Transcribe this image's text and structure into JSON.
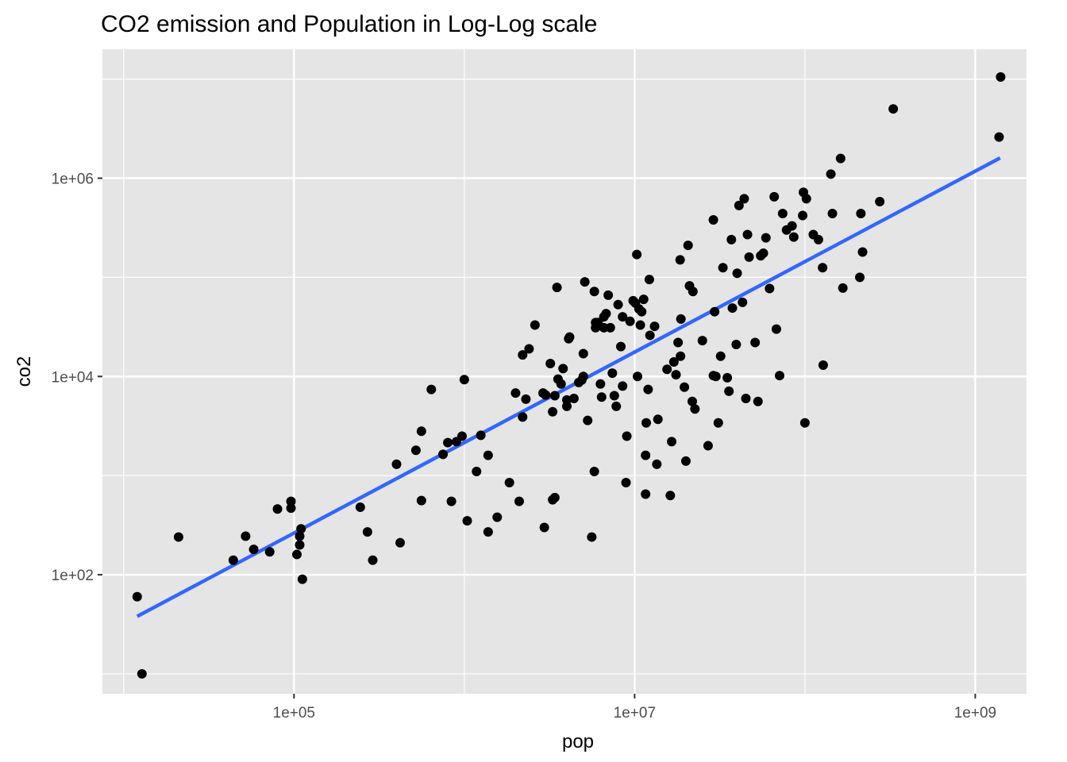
{
  "chart_data": {
    "type": "scatter",
    "title": "CO2 emission and Population in Log-Log scale",
    "xlabel": "pop",
    "ylabel": "co2",
    "x_scale": "log10",
    "y_scale": "log10",
    "xlim": [
      7500,
      2000000000
    ],
    "ylim": [
      6.3,
      20000000
    ],
    "x_ticks": [
      {
        "value": 100000,
        "label": "1e+05"
      },
      {
        "value": 10000000,
        "label": "1e+07"
      },
      {
        "value": 1000000000,
        "label": "1e+09"
      }
    ],
    "y_ticks": [
      {
        "value": 100,
        "label": "1e+02"
      },
      {
        "value": 10000,
        "label": "1e+04"
      },
      {
        "value": 1000000,
        "label": "1e+06"
      }
    ],
    "grid": true,
    "colors": {
      "panel": "#e5e5e5",
      "grid": "#ffffff",
      "points": "#000000",
      "trend": "#3366ff"
    },
    "trend_line": {
      "method": "lm",
      "x": [
        12000,
        1400000000
      ],
      "y": [
        38,
        1600000
      ]
    },
    "points": [
      [
        12000,
        60
      ],
      [
        12800,
        10
      ],
      [
        21000,
        240
      ],
      [
        44000,
        140
      ],
      [
        52000,
        245
      ],
      [
        58000,
        180
      ],
      [
        72000,
        170
      ],
      [
        80000,
        460
      ],
      [
        96000,
        550
      ],
      [
        96000,
        470
      ],
      [
        104000,
        160
      ],
      [
        108000,
        200
      ],
      [
        110000,
        290
      ],
      [
        108000,
        245
      ],
      [
        112000,
        90
      ],
      [
        245000,
        480
      ],
      [
        270000,
        270
      ],
      [
        290000,
        140
      ],
      [
        400000,
        1300
      ],
      [
        420000,
        210
      ],
      [
        520000,
        1800
      ],
      [
        560000,
        2800
      ],
      [
        560000,
        560
      ],
      [
        640000,
        7400
      ],
      [
        750000,
        1640
      ],
      [
        800000,
        2150
      ],
      [
        840000,
        550
      ],
      [
        900000,
        2200
      ],
      [
        970000,
        2500
      ],
      [
        1000000,
        9300
      ],
      [
        1040000,
        350
      ],
      [
        1180000,
        1100
      ],
      [
        1250000,
        2550
      ],
      [
        1380000,
        1600
      ],
      [
        1380000,
        270
      ],
      [
        1560000,
        380
      ],
      [
        1840000,
        850
      ],
      [
        2000000,
        6800
      ],
      [
        2100000,
        550
      ],
      [
        2200000,
        3900
      ],
      [
        2200000,
        16500
      ],
      [
        2300000,
        5900
      ],
      [
        2400000,
        19000
      ],
      [
        2600000,
        33000
      ],
      [
        2900000,
        6800
      ],
      [
        2950000,
        300
      ],
      [
        3000000,
        6500
      ],
      [
        3200000,
        13500
      ],
      [
        3300000,
        570
      ],
      [
        3300000,
        4400
      ],
      [
        3400000,
        600
      ],
      [
        3400000,
        6400
      ],
      [
        3550000,
        9400
      ],
      [
        3700000,
        8400
      ],
      [
        3500000,
        79000
      ],
      [
        4000000,
        5000
      ],
      [
        3800000,
        12000
      ],
      [
        4000000,
        5800
      ],
      [
        4100000,
        24000
      ],
      [
        4150000,
        25000
      ],
      [
        4400000,
        6000
      ],
      [
        4700000,
        8700
      ],
      [
        4900000,
        9200
      ],
      [
        5000000,
        17000
      ],
      [
        5000000,
        10000
      ],
      [
        5100000,
        90000
      ],
      [
        5300000,
        3600
      ],
      [
        5600000,
        240
      ],
      [
        5800000,
        1100
      ],
      [
        5800000,
        72000
      ],
      [
        5900000,
        35000
      ],
      [
        5900000,
        31000
      ],
      [
        6100000,
        35000
      ],
      [
        6300000,
        8400
      ],
      [
        6400000,
        6200
      ],
      [
        6600000,
        31000
      ],
      [
        6600000,
        40000
      ],
      [
        6800000,
        43000
      ],
      [
        7000000,
        66000
      ],
      [
        7200000,
        31000
      ],
      [
        7400000,
        10800
      ],
      [
        7600000,
        6400
      ],
      [
        7800000,
        5000
      ],
      [
        8000000,
        53000
      ],
      [
        8300000,
        20000
      ],
      [
        8500000,
        40000
      ],
      [
        8500000,
        8000
      ],
      [
        8900000,
        850
      ],
      [
        9000000,
        2500
      ],
      [
        9400000,
        36000
      ],
      [
        9800000,
        58000
      ],
      [
        10100000,
        55000
      ],
      [
        10400000,
        10000
      ],
      [
        10300000,
        170000
      ],
      [
        10600000,
        48000
      ],
      [
        10800000,
        33000
      ],
      [
        11000000,
        45000
      ],
      [
        11300000,
        60000
      ],
      [
        11600000,
        1600
      ],
      [
        11700000,
        3400
      ],
      [
        11600000,
        650
      ],
      [
        12000000,
        7400
      ],
      [
        12300000,
        26000
      ],
      [
        12200000,
        95000
      ],
      [
        13100000,
        32000
      ],
      [
        13500000,
        1300
      ],
      [
        13700000,
        3700
      ],
      [
        15500000,
        11800
      ],
      [
        16200000,
        630
      ],
      [
        16500000,
        2200
      ],
      [
        17000000,
        14000
      ],
      [
        17500000,
        10400
      ],
      [
        18000000,
        22000
      ],
      [
        18500000,
        150000
      ],
      [
        18700000,
        38000
      ],
      [
        18600000,
        16000
      ],
      [
        19600000,
        7800
      ],
      [
        20000000,
        1400
      ],
      [
        20600000,
        210000
      ],
      [
        21000000,
        82000
      ],
      [
        22000000,
        72000
      ],
      [
        21800000,
        5600
      ],
      [
        22600000,
        4700
      ],
      [
        25000000,
        23000
      ],
      [
        27000000,
        2000
      ],
      [
        29000000,
        10200
      ],
      [
        29000000,
        380000
      ],
      [
        29500000,
        45000
      ],
      [
        30000000,
        10000
      ],
      [
        31000000,
        3400
      ],
      [
        32000000,
        16000
      ],
      [
        33000000,
        125000
      ],
      [
        35000000,
        9700
      ],
      [
        35800000,
        7100
      ],
      [
        37000000,
        240000
      ],
      [
        37500000,
        49000
      ],
      [
        39500000,
        21000
      ],
      [
        40000000,
        110000
      ],
      [
        41000000,
        530000
      ],
      [
        43000000,
        56000
      ],
      [
        44000000,
        620000
      ],
      [
        45000000,
        6000
      ],
      [
        46000000,
        270000
      ],
      [
        47000000,
        160000
      ],
      [
        51000000,
        22000
      ],
      [
        53000000,
        5600
      ],
      [
        55000000,
        165000
      ],
      [
        57000000,
        175000
      ],
      [
        59000000,
        250000
      ],
      [
        62000000,
        77000
      ],
      [
        66000000,
        650000
      ],
      [
        68000000,
        30000
      ],
      [
        71000000,
        10200
      ],
      [
        74000000,
        440000
      ],
      [
        78000000,
        300000
      ],
      [
        84000000,
        330000
      ],
      [
        86000000,
        255000
      ],
      [
        97000000,
        420000
      ],
      [
        98000000,
        720000
      ],
      [
        100000000,
        3400
      ],
      [
        102000000,
        620000
      ],
      [
        112000000,
        270000
      ],
      [
        120000000,
        240000
      ],
      [
        128000000,
        13000
      ],
      [
        127000000,
        125000
      ],
      [
        142000000,
        1100000
      ],
      [
        145000000,
        440000
      ],
      [
        162000000,
        1580000
      ],
      [
        167000000,
        78000
      ],
      [
        210000000,
        100000
      ],
      [
        213000000,
        440000
      ],
      [
        218000000,
        180000
      ],
      [
        275000000,
        580000
      ],
      [
        330000000,
        5000000
      ],
      [
        1380000000,
        2600000
      ],
      [
        1410000000,
        10500000
      ]
    ]
  }
}
